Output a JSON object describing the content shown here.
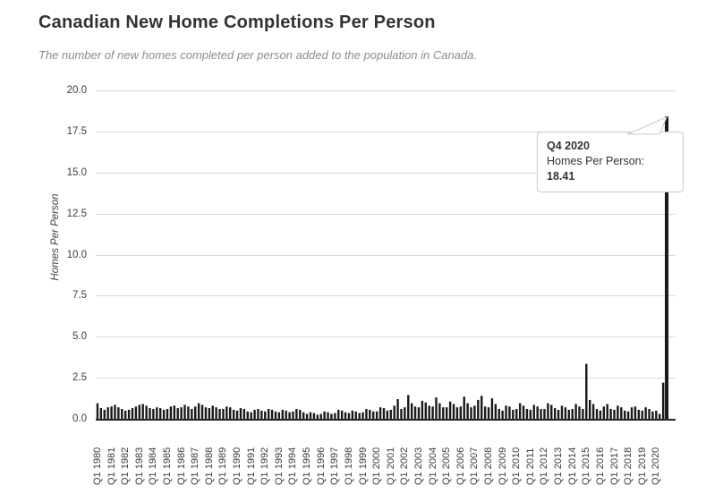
{
  "page": {
    "title": "Canadian New Home Completions Per Person",
    "subtitle": "The number of new homes completed per person added to the population in Canada."
  },
  "tooltip": {
    "title": "Q4 2020",
    "series_label": "Homes Per Person: ",
    "value": "18.41"
  },
  "chart_data": {
    "type": "bar",
    "title": "Canadian New Home Completions Per Person",
    "subtitle": "The number of new homes completed per person added to the population in Canada.",
    "xlabel": "",
    "ylabel": "Homes Per Person",
    "ylim": [
      0,
      20
    ],
    "yticks": [
      0,
      2.5,
      5,
      7.5,
      10,
      12.5,
      15,
      17.5,
      20
    ],
    "grid": true,
    "frequency": "quarterly",
    "start_category": "Q1 1980",
    "end_category": "Q4 2020",
    "x_tick_every": 4,
    "x_tick_labels": [
      "Q1 1980",
      "Q1 1981",
      "Q1 1982",
      "Q1 1983",
      "Q1 1984",
      "Q1 1985",
      "Q1 1986",
      "Q1 1987",
      "Q1 1988",
      "Q1 1989",
      "Q1 1990",
      "Q1 1991",
      "Q1 1992",
      "Q1 1993",
      "Q1 1994",
      "Q1 1995",
      "Q1 1996",
      "Q1 1997",
      "Q1 1998",
      "Q1 1999",
      "Q1 2000",
      "Q1 2001",
      "Q1 2002",
      "Q1 2003",
      "Q1 2004",
      "Q1 2005",
      "Q1 2006",
      "Q1 2007",
      "Q1 2008",
      "Q1 2009",
      "Q1 2010",
      "Q1 2011",
      "Q1 2012",
      "Q1 2013",
      "Q1 2014",
      "Q1 2015",
      "Q1 2016",
      "Q1 2017",
      "Q1 2018",
      "Q1 2019",
      "Q1 2020"
    ],
    "values": [
      0.95,
      0.65,
      0.55,
      0.7,
      0.75,
      0.85,
      0.7,
      0.6,
      0.5,
      0.55,
      0.65,
      0.75,
      0.85,
      0.9,
      0.8,
      0.65,
      0.6,
      0.7,
      0.65,
      0.55,
      0.6,
      0.75,
      0.8,
      0.65,
      0.7,
      0.85,
      0.75,
      0.6,
      0.75,
      0.95,
      0.85,
      0.7,
      0.65,
      0.8,
      0.7,
      0.6,
      0.6,
      0.75,
      0.7,
      0.55,
      0.5,
      0.65,
      0.6,
      0.45,
      0.4,
      0.55,
      0.6,
      0.5,
      0.45,
      0.6,
      0.55,
      0.45,
      0.4,
      0.55,
      0.5,
      0.4,
      0.45,
      0.6,
      0.55,
      0.4,
      0.3,
      0.4,
      0.35,
      0.25,
      0.3,
      0.45,
      0.4,
      0.3,
      0.35,
      0.55,
      0.5,
      0.4,
      0.35,
      0.5,
      0.45,
      0.35,
      0.4,
      0.6,
      0.55,
      0.45,
      0.45,
      0.7,
      0.65,
      0.5,
      0.55,
      0.8,
      1.2,
      0.6,
      0.7,
      1.45,
      0.95,
      0.75,
      0.7,
      1.1,
      1.0,
      0.8,
      0.75,
      1.3,
      0.95,
      0.7,
      0.7,
      1.05,
      0.9,
      0.7,
      0.75,
      1.35,
      0.95,
      0.7,
      0.8,
      1.15,
      1.4,
      0.75,
      0.7,
      1.25,
      0.9,
      0.6,
      0.5,
      0.8,
      0.75,
      0.55,
      0.6,
      0.95,
      0.8,
      0.6,
      0.55,
      0.85,
      0.75,
      0.6,
      0.6,
      0.95,
      0.85,
      0.65,
      0.55,
      0.8,
      0.7,
      0.55,
      0.6,
      0.9,
      0.75,
      0.6,
      3.35,
      1.15,
      0.9,
      0.6,
      0.5,
      0.75,
      0.9,
      0.6,
      0.55,
      0.8,
      0.7,
      0.5,
      0.45,
      0.7,
      0.75,
      0.55,
      0.5,
      0.7,
      0.6,
      0.45,
      0.5,
      0.3,
      2.2,
      18.41
    ],
    "highlight": {
      "category": "Q4 2020",
      "value": 18.41
    },
    "bar_color": "#191919",
    "grid_color": "#d9d9d9",
    "axis_color": "#262626",
    "legend": "none"
  }
}
